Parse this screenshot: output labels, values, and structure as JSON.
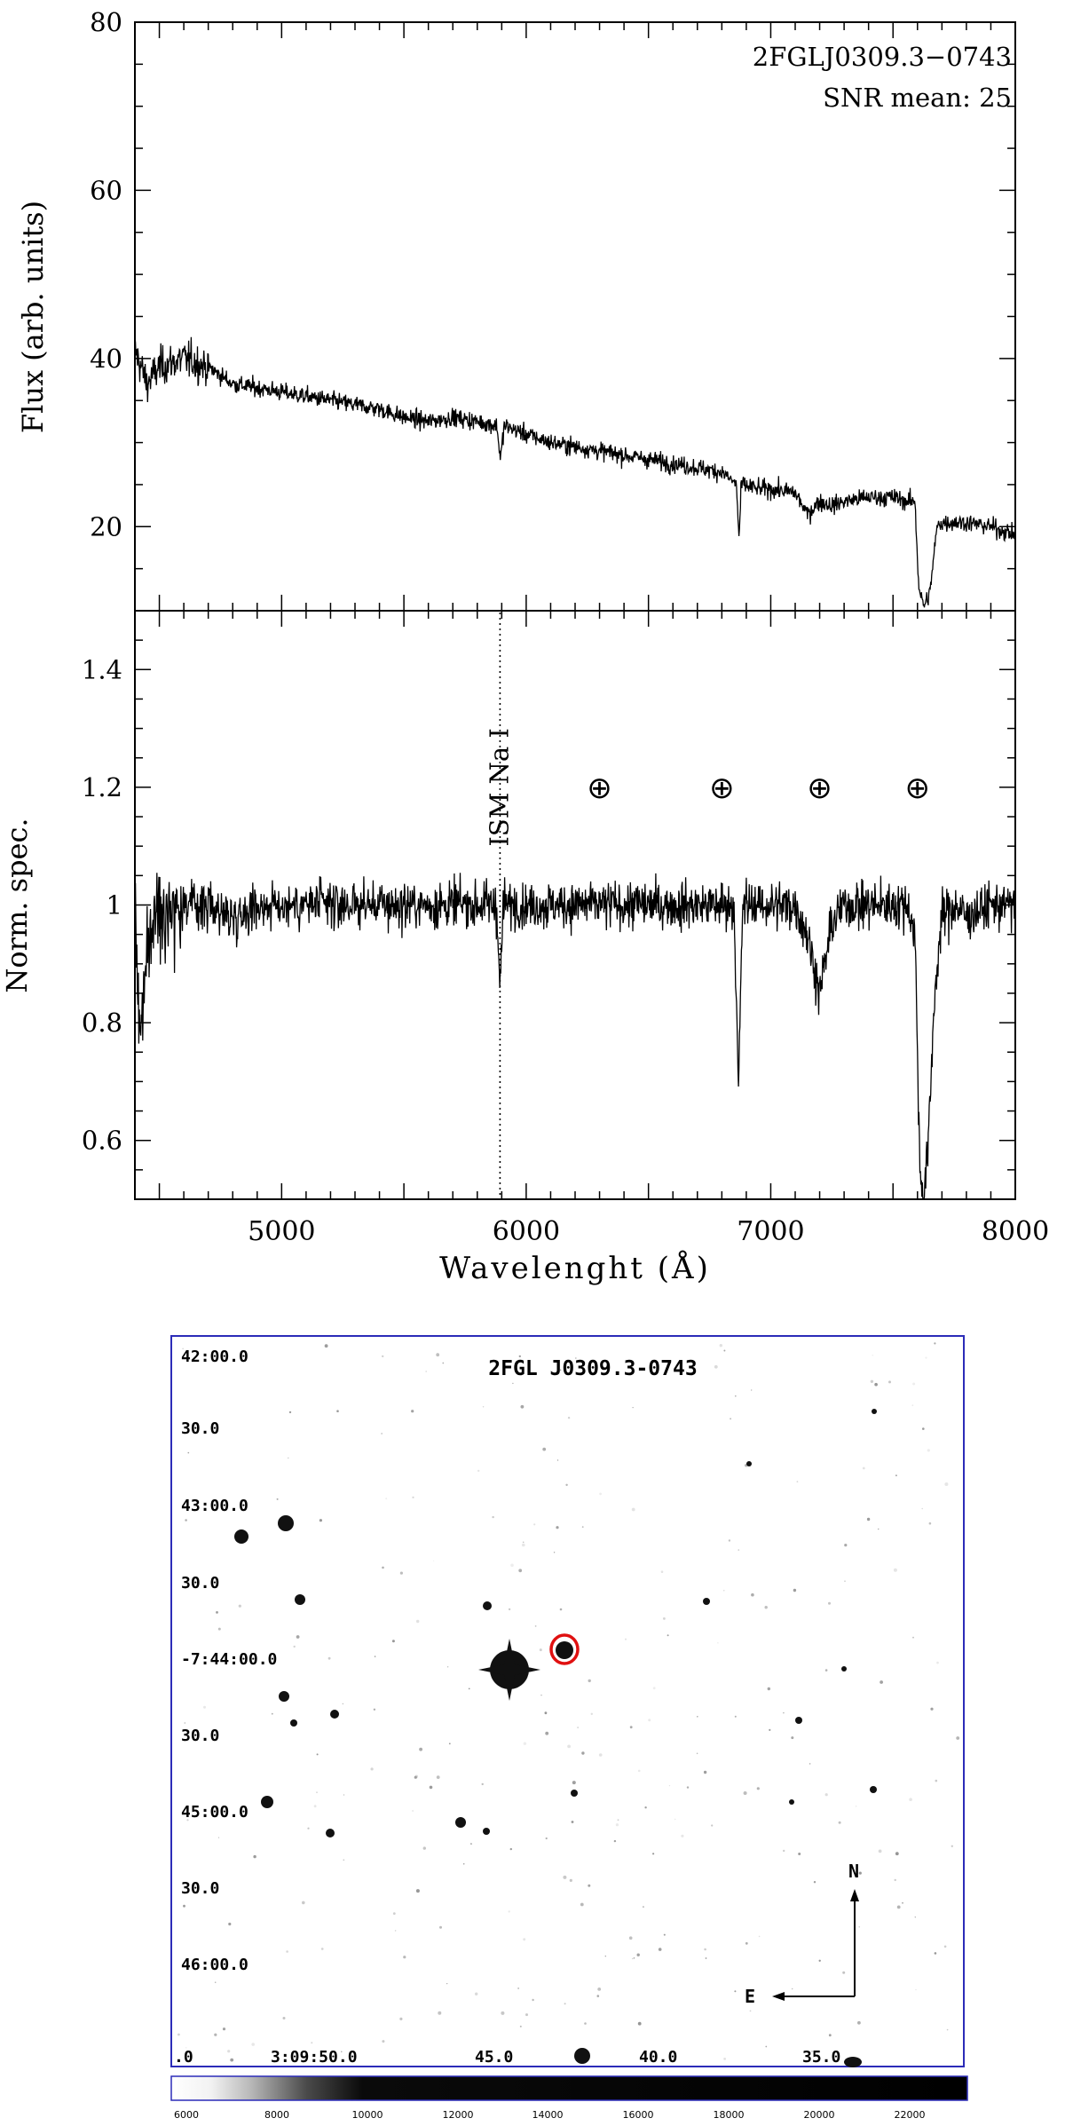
{
  "chart_data": [
    {
      "type": "line",
      "panel": "top",
      "annotation_lines": [
        "2FGLJ0309.3−0743",
        "SNR mean: 25"
      ],
      "xlabel": "",
      "ylabel": "Flux (arb. units)",
      "xlim": [
        4400,
        8000
      ],
      "ylim": [
        10,
        80
      ],
      "yticks": [
        20,
        40,
        60,
        80
      ],
      "series": [
        {
          "x": [
            4400,
            4450,
            4500,
            4600,
            4700,
            4800,
            4900,
            5000,
            5100,
            5200,
            5300,
            5400,
            5500,
            5600,
            5700,
            5800,
            5880,
            5895,
            5910,
            6000,
            6100,
            6200,
            6300,
            6400,
            6500,
            6600,
            6700,
            6800,
            6860,
            6870,
            6880,
            6950,
            7000,
            7100,
            7150,
            7200,
            7250,
            7300,
            7400,
            7500,
            7560,
            7590,
            7605,
            7625,
            7650,
            7680,
            7700,
            7800,
            7900,
            8000
          ],
          "y": [
            41,
            37,
            39,
            40,
            39,
            37,
            36.5,
            36,
            35.5,
            35,
            34.5,
            34,
            33,
            32.5,
            33,
            32.5,
            32,
            28,
            32,
            31,
            30,
            29.5,
            29,
            28.5,
            28,
            27.5,
            27,
            26.5,
            25,
            18.5,
            25,
            24.5,
            24.5,
            24,
            21.5,
            23,
            22.5,
            23,
            23.5,
            23.5,
            23,
            23,
            13,
            10.5,
            12,
            20,
            20.5,
            20.5,
            20,
            19
          ]
        }
      ]
    },
    {
      "type": "line",
      "panel": "bottom",
      "xlabel": "Wavelenght (Å)",
      "ylabel": "Norm. spec.",
      "xlim": [
        4400,
        8000
      ],
      "ylim": [
        0.5,
        1.5
      ],
      "xticks": [
        5000,
        6000,
        7000,
        8000
      ],
      "yticks": [
        0.6,
        0.8,
        1,
        1.2,
        1.4
      ],
      "ytick_labels": [
        "0.6",
        "0.8",
        "1",
        "1.2",
        "1.4"
      ],
      "series": [
        {
          "x": [
            4400,
            4420,
            4440,
            4460,
            4500,
            4600,
            4700,
            4800,
            4900,
            5000,
            5100,
            5200,
            5300,
            5400,
            5500,
            5600,
            5700,
            5800,
            5880,
            5893,
            5906,
            6000,
            6100,
            6200,
            6300,
            6400,
            6500,
            6600,
            6700,
            6800,
            6850,
            6868,
            6885,
            6950,
            7000,
            7100,
            7150,
            7200,
            7250,
            7300,
            7400,
            7500,
            7560,
            7590,
            7610,
            7625,
            7645,
            7670,
            7700,
            7750,
            7800,
            7900,
            8000
          ],
          "y": [
            1.0,
            0.78,
            0.86,
            0.95,
            1.0,
            1.0,
            1.0,
            0.98,
            1.0,
            1.0,
            1.0,
            1.0,
            1.0,
            1.0,
            1.0,
            1.0,
            1.0,
            1.0,
            1.0,
            0.85,
            1.0,
            1.0,
            1.0,
            1.0,
            1.0,
            1.0,
            1.0,
            1.0,
            1.0,
            1.0,
            1.0,
            0.68,
            1.0,
            1.0,
            1.0,
            1.0,
            0.95,
            0.85,
            0.97,
            1.0,
            1.0,
            1.0,
            1.0,
            0.95,
            0.55,
            0.5,
            0.6,
            0.85,
            0.98,
            1.0,
            0.98,
            1.0,
            1.0
          ]
        }
      ],
      "annotations": [
        {
          "label": "ISM Na I",
          "x": 5893,
          "style": "dotted-vertical-line"
        }
      ],
      "telluric_marker": "⊕",
      "telluric_markers_x": [
        6300,
        6800,
        7200,
        7600
      ],
      "telluric_markers_y": 1.2
    }
  ],
  "finding_chart": {
    "title": "2FGL J0309.3-0743",
    "dec_labels": [
      "42:00.0",
      "30.0",
      "43:00.0",
      "30.0",
      "-7:44:00.0",
      "30.0",
      "45:00.0",
      "30.0",
      "46:00.0"
    ],
    "ra_labels": [
      ".0",
      "3:09:50.0",
      "45.0",
      "40.0",
      "35.0"
    ],
    "compass": {
      "north": "N",
      "east": "E"
    },
    "colorbar_ticks": [
      "6000",
      "8000",
      "10000",
      "12000",
      "14000",
      "16000",
      "18000",
      "20000",
      "22000"
    ],
    "frame_color": "#2c2cb8",
    "marker_color": "#e01010"
  }
}
